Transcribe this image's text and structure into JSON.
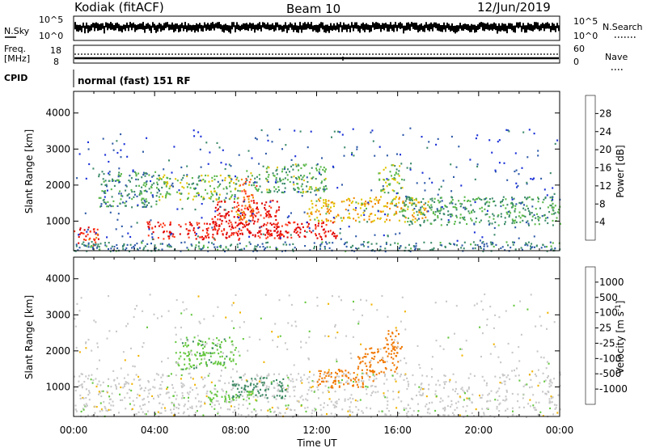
{
  "header": {
    "station": "Kodiak (fitACF)",
    "beam": "Beam 10",
    "date": "12/Jun/2019"
  },
  "strip": {
    "nsky_label": "N.Sky",
    "nsearch_label": "N.Search",
    "noise_ticks_left": [
      "10^5",
      "10^0"
    ],
    "noise_ticks_right": [
      "10^5",
      "10^0"
    ],
    "freq_label_1": "Freq.",
    "freq_label_2": "[MHz]",
    "freq_ticks": [
      "18",
      "8"
    ],
    "nave_label": "Nave",
    "nave_ticks": [
      "60",
      "0"
    ],
    "cpid_label": "CPID",
    "cpid_value": "normal (fast) 151 RF"
  },
  "x_axis": {
    "label": "Time UT",
    "ticks": [
      "00:00",
      "04:00",
      "08:00",
      "12:00",
      "16:00",
      "20:00",
      "00:00"
    ]
  },
  "colors": {
    "power_scale": [
      "#1a2fd8",
      "#2e5aa8",
      "#3c8a6a",
      "#5ab84a",
      "#e0c400",
      "#f08a00",
      "#ff3a1a",
      "#e00000"
    ],
    "velocity_scale": [
      "#2c3fb0",
      "#3a6ea0",
      "#3e8a64",
      "#66c840",
      "#c8c8c8",
      "#f0b400",
      "#f07800",
      "#f04010",
      "#e00000"
    ]
  },
  "chart_data": [
    {
      "type": "heatmap",
      "title": "",
      "xlabel": "Time UT",
      "ylabel": "Slant Range [km]",
      "x_ticks": [
        "00:00",
        "04:00",
        "08:00",
        "12:00",
        "16:00",
        "20:00",
        "00:00"
      ],
      "xlim_hours": [
        0,
        24
      ],
      "y_ticks": [
        1000,
        2000,
        3000,
        4000
      ],
      "ylim": [
        180,
        4600
      ],
      "colorbar": {
        "label": "Power [dB]",
        "ticks": [
          "4",
          "8",
          "12",
          "16",
          "20",
          "24",
          "28"
        ],
        "range": [
          0,
          30
        ]
      },
      "regions": [
        {
          "t0": 0.0,
          "t1": 1.2,
          "r0": 350,
          "r1": 900,
          "level": 26
        },
        {
          "t0": 3.6,
          "t1": 13.0,
          "r0": 500,
          "r1": 1000,
          "level": 27
        },
        {
          "t0": 6.8,
          "t1": 10.2,
          "r0": 600,
          "r1": 1600,
          "level": 28
        },
        {
          "t0": 8.0,
          "t1": 9.0,
          "r0": 1000,
          "r1": 2200,
          "level": 22
        },
        {
          "t0": 4.0,
          "t1": 8.2,
          "r0": 1600,
          "r1": 2300,
          "level": 14
        },
        {
          "t0": 1.2,
          "t1": 4.2,
          "r0": 1400,
          "r1": 2400,
          "level": 10
        },
        {
          "t0": 8.5,
          "t1": 12.5,
          "r0": 1800,
          "r1": 2600,
          "level": 12
        },
        {
          "t0": 11.5,
          "t1": 17.5,
          "r0": 1000,
          "r1": 1700,
          "level": 18
        },
        {
          "t0": 15.0,
          "t1": 16.2,
          "r0": 1800,
          "r1": 2600,
          "level": 14
        },
        {
          "t0": 16.2,
          "t1": 24.0,
          "r0": 900,
          "r1": 1700,
          "level": 11
        },
        {
          "t0": 0.0,
          "t1": 24.0,
          "r0": 180,
          "r1": 450,
          "level": 8
        },
        {
          "t0": 0.0,
          "t1": 24.0,
          "r0": 450,
          "r1": 3600,
          "level": 5
        }
      ]
    },
    {
      "type": "heatmap",
      "title": "",
      "xlabel": "Time UT",
      "ylabel": "Slant Range [km]",
      "x_ticks": [
        "00:00",
        "04:00",
        "08:00",
        "12:00",
        "16:00",
        "20:00",
        "00:00"
      ],
      "xlim_hours": [
        0,
        24
      ],
      "y_ticks": [
        1000,
        2000,
        3000,
        4000
      ],
      "ylim": [
        180,
        4600
      ],
      "colorbar": {
        "label": "Velocity [m s^-1]",
        "ticks": [
          "1000",
          "500",
          "100",
          "25",
          "-25",
          "-100",
          "-500",
          "-1000"
        ],
        "range": [
          -1200,
          1200
        ]
      },
      "regions": [
        {
          "t0": 0.0,
          "t1": 24.0,
          "r0": 180,
          "r1": 1400,
          "level": 0
        },
        {
          "t0": 7.8,
          "t1": 10.5,
          "r0": 700,
          "r1": 1300,
          "level": 200
        },
        {
          "t0": 6.5,
          "t1": 9.0,
          "r0": 600,
          "r1": 900,
          "level": 60
        },
        {
          "t0": 5.0,
          "t1": 8.0,
          "r0": 1500,
          "r1": 2400,
          "level": 80
        },
        {
          "t0": 12.0,
          "t1": 15.0,
          "r0": 1000,
          "r1": 1500,
          "level": -400
        },
        {
          "t0": 14.0,
          "t1": 16.0,
          "r0": 1400,
          "r1": 2100,
          "level": -350
        },
        {
          "t0": 15.2,
          "t1": 16.2,
          "r0": 2000,
          "r1": 2600,
          "level": -200
        },
        {
          "t0": 0.0,
          "t1": 24.0,
          "r0": 1400,
          "r1": 3600,
          "level": 0
        }
      ]
    }
  ]
}
